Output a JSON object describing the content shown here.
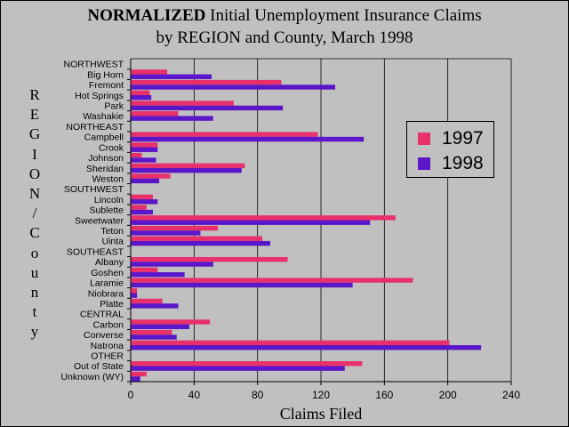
{
  "colors": {
    "s1997": "#e8306a",
    "s1998": "#5a16c8",
    "background": "#c0c0c0",
    "grid": "#000000"
  },
  "chart_data": {
    "type": "bar",
    "orientation": "horizontal",
    "title_bold": "NORMALIZED",
    "title_rest": " Initial Unemployment Insurance Claims",
    "subtitle": "by REGION and County, March 1998",
    "xlabel": "Claims Filed",
    "ylabel": "REGION/County",
    "xlim": [
      0,
      240
    ],
    "xticks": [
      "0",
      "40",
      "80",
      "120",
      "160",
      "200",
      "240"
    ],
    "grid": true,
    "legend_position": "right",
    "categories": [
      "NORTHWEST",
      "Big Horn",
      "Fremont",
      "Hot Springs",
      "Park",
      "Washakie",
      "NORTHEAST",
      "Campbell",
      "Crook",
      "Johnson",
      "Sheridan",
      "Weston",
      "SOUTHWEST",
      "Lincoln",
      "Sublette",
      "Sweetwater",
      "Teton",
      "Uinta",
      "SOUTHEAST",
      "Albany",
      "Goshen",
      "Laramie",
      "Niobrara",
      "Platte",
      "CENTRAL",
      "Carbon",
      "Converse",
      "Natrona",
      "OTHER",
      "Out of State",
      "Unknown (WY)"
    ],
    "series": [
      {
        "name": "1997",
        "values": [
          null,
          23,
          95,
          12,
          65,
          30,
          null,
          118,
          17,
          7,
          72,
          25,
          null,
          14,
          10,
          167,
          55,
          83,
          null,
          99,
          17,
          178,
          4,
          20,
          null,
          50,
          26,
          201,
          null,
          146,
          10
        ]
      },
      {
        "name": "1998",
        "values": [
          null,
          51,
          129,
          13,
          96,
          52,
          null,
          147,
          17,
          16,
          70,
          18,
          null,
          17,
          14,
          151,
          44,
          88,
          null,
          52,
          34,
          140,
          4,
          30,
          null,
          37,
          29,
          221,
          null,
          135,
          6
        ]
      }
    ]
  }
}
